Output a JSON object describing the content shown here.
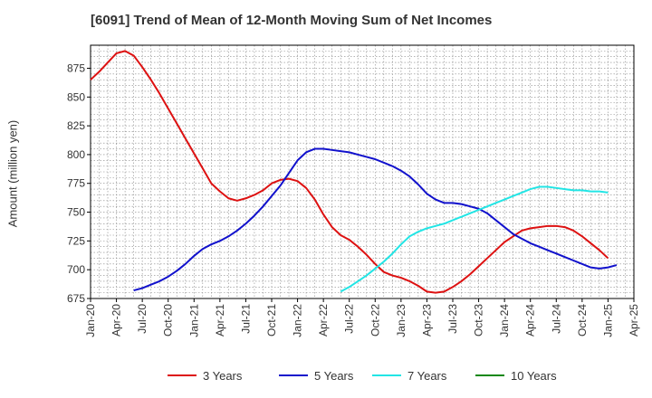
{
  "chart_data": {
    "type": "line",
    "title": "[6091]  Trend of Mean of 12-Month Moving Sum of Net Incomes",
    "ylabel": "Amount (million yen)",
    "xlabel": "",
    "ylim": [
      675,
      895
    ],
    "y_ticks": [
      675,
      700,
      725,
      750,
      775,
      800,
      825,
      850,
      875
    ],
    "x_range": [
      "2020-01",
      "2025-04"
    ],
    "x_ticks": [
      "Jan-20",
      "Apr-20",
      "Jul-20",
      "Oct-20",
      "Jan-21",
      "Apr-21",
      "Jul-21",
      "Oct-21",
      "Jan-22",
      "Apr-22",
      "Jul-22",
      "Oct-22",
      "Jan-23",
      "Apr-23",
      "Jul-23",
      "Oct-23",
      "Jan-24",
      "Apr-24",
      "Jul-24",
      "Oct-24",
      "Jan-25",
      "Apr-25"
    ],
    "grid": true,
    "legend_position": "bottom",
    "series": [
      {
        "name": "3 Years",
        "color": "#dd1111",
        "points": [
          [
            "2020-01",
            865
          ],
          [
            "2020-02",
            872
          ],
          [
            "2020-03",
            880
          ],
          [
            "2020-04",
            888
          ],
          [
            "2020-05",
            890
          ],
          [
            "2020-06",
            886
          ],
          [
            "2020-07",
            876
          ],
          [
            "2020-08",
            865
          ],
          [
            "2020-09",
            853
          ],
          [
            "2020-10",
            840
          ],
          [
            "2020-11",
            827
          ],
          [
            "2020-12",
            814
          ],
          [
            "2021-01",
            801
          ],
          [
            "2021-02",
            788
          ],
          [
            "2021-03",
            775
          ],
          [
            "2021-04",
            768
          ],
          [
            "2021-05",
            762
          ],
          [
            "2021-06",
            760
          ],
          [
            "2021-07",
            762
          ],
          [
            "2021-08",
            765
          ],
          [
            "2021-09",
            769
          ],
          [
            "2021-10",
            775
          ],
          [
            "2021-11",
            778
          ],
          [
            "2021-12",
            779
          ],
          [
            "2022-01",
            777
          ],
          [
            "2022-02",
            771
          ],
          [
            "2022-03",
            761
          ],
          [
            "2022-04",
            748
          ],
          [
            "2022-05",
            737
          ],
          [
            "2022-06",
            730
          ],
          [
            "2022-07",
            726
          ],
          [
            "2022-08",
            720
          ],
          [
            "2022-09",
            713
          ],
          [
            "2022-10",
            705
          ],
          [
            "2022-11",
            698
          ],
          [
            "2022-12",
            695
          ],
          [
            "2023-01",
            693
          ],
          [
            "2023-02",
            690
          ],
          [
            "2023-03",
            686
          ],
          [
            "2023-04",
            681
          ],
          [
            "2023-05",
            680
          ],
          [
            "2023-06",
            681
          ],
          [
            "2023-07",
            685
          ],
          [
            "2023-08",
            690
          ],
          [
            "2023-09",
            696
          ],
          [
            "2023-10",
            703
          ],
          [
            "2023-11",
            710
          ],
          [
            "2023-12",
            717
          ],
          [
            "2024-01",
            724
          ],
          [
            "2024-02",
            729
          ],
          [
            "2024-03",
            734
          ],
          [
            "2024-04",
            736
          ],
          [
            "2024-05",
            737
          ],
          [
            "2024-06",
            738
          ],
          [
            "2024-07",
            738
          ],
          [
            "2024-08",
            737
          ],
          [
            "2024-09",
            734
          ],
          [
            "2024-10",
            729
          ],
          [
            "2024-11",
            723
          ],
          [
            "2024-12",
            717
          ],
          [
            "2025-01",
            710
          ]
        ]
      },
      {
        "name": "5 Years",
        "color": "#1111cc",
        "points": [
          [
            "2020-06",
            682
          ],
          [
            "2020-07",
            684
          ],
          [
            "2020-08",
            687
          ],
          [
            "2020-09",
            690
          ],
          [
            "2020-10",
            694
          ],
          [
            "2020-11",
            699
          ],
          [
            "2020-12",
            705
          ],
          [
            "2021-01",
            712
          ],
          [
            "2021-02",
            718
          ],
          [
            "2021-03",
            722
          ],
          [
            "2021-04",
            725
          ],
          [
            "2021-05",
            729
          ],
          [
            "2021-06",
            734
          ],
          [
            "2021-07",
            740
          ],
          [
            "2021-08",
            747
          ],
          [
            "2021-09",
            755
          ],
          [
            "2021-10",
            764
          ],
          [
            "2021-11",
            773
          ],
          [
            "2021-12",
            784
          ],
          [
            "2022-01",
            795
          ],
          [
            "2022-02",
            802
          ],
          [
            "2022-03",
            805
          ],
          [
            "2022-04",
            805
          ],
          [
            "2022-05",
            804
          ],
          [
            "2022-06",
            803
          ],
          [
            "2022-07",
            802
          ],
          [
            "2022-08",
            800
          ],
          [
            "2022-09",
            798
          ],
          [
            "2022-10",
            796
          ],
          [
            "2022-11",
            793
          ],
          [
            "2022-12",
            790
          ],
          [
            "2023-01",
            786
          ],
          [
            "2023-02",
            781
          ],
          [
            "2023-03",
            774
          ],
          [
            "2023-04",
            766
          ],
          [
            "2023-05",
            761
          ],
          [
            "2023-06",
            758
          ],
          [
            "2023-07",
            758
          ],
          [
            "2023-08",
            757
          ],
          [
            "2023-09",
            755
          ],
          [
            "2023-10",
            753
          ],
          [
            "2023-11",
            749
          ],
          [
            "2023-12",
            743
          ],
          [
            "2024-01",
            737
          ],
          [
            "2024-02",
            731
          ],
          [
            "2024-03",
            727
          ],
          [
            "2024-04",
            723
          ],
          [
            "2024-05",
            720
          ],
          [
            "2024-06",
            717
          ],
          [
            "2024-07",
            714
          ],
          [
            "2024-08",
            711
          ],
          [
            "2024-09",
            708
          ],
          [
            "2024-10",
            705
          ],
          [
            "2024-11",
            702
          ],
          [
            "2024-12",
            701
          ],
          [
            "2025-01",
            702
          ],
          [
            "2025-02",
            704
          ]
        ]
      },
      {
        "name": "7 Years",
        "color": "#22e5e5",
        "points": [
          [
            "2022-06",
            681
          ],
          [
            "2022-07",
            685
          ],
          [
            "2022-08",
            690
          ],
          [
            "2022-09",
            695
          ],
          [
            "2022-10",
            701
          ],
          [
            "2022-11",
            707
          ],
          [
            "2022-12",
            714
          ],
          [
            "2023-01",
            722
          ],
          [
            "2023-02",
            729
          ],
          [
            "2023-03",
            733
          ],
          [
            "2023-04",
            736
          ],
          [
            "2023-05",
            738
          ],
          [
            "2023-06",
            740
          ],
          [
            "2023-07",
            743
          ],
          [
            "2023-08",
            746
          ],
          [
            "2023-09",
            749
          ],
          [
            "2023-10",
            752
          ],
          [
            "2023-11",
            755
          ],
          [
            "2023-12",
            758
          ],
          [
            "2024-01",
            761
          ],
          [
            "2024-02",
            764
          ],
          [
            "2024-03",
            767
          ],
          [
            "2024-04",
            770
          ],
          [
            "2024-05",
            772
          ],
          [
            "2024-06",
            772
          ],
          [
            "2024-07",
            771
          ],
          [
            "2024-08",
            770
          ],
          [
            "2024-09",
            769
          ],
          [
            "2024-10",
            769
          ],
          [
            "2024-11",
            768
          ],
          [
            "2024-12",
            768
          ],
          [
            "2025-01",
            767
          ]
        ]
      },
      {
        "name": "10 Years",
        "color": "#118811",
        "points": []
      }
    ]
  }
}
